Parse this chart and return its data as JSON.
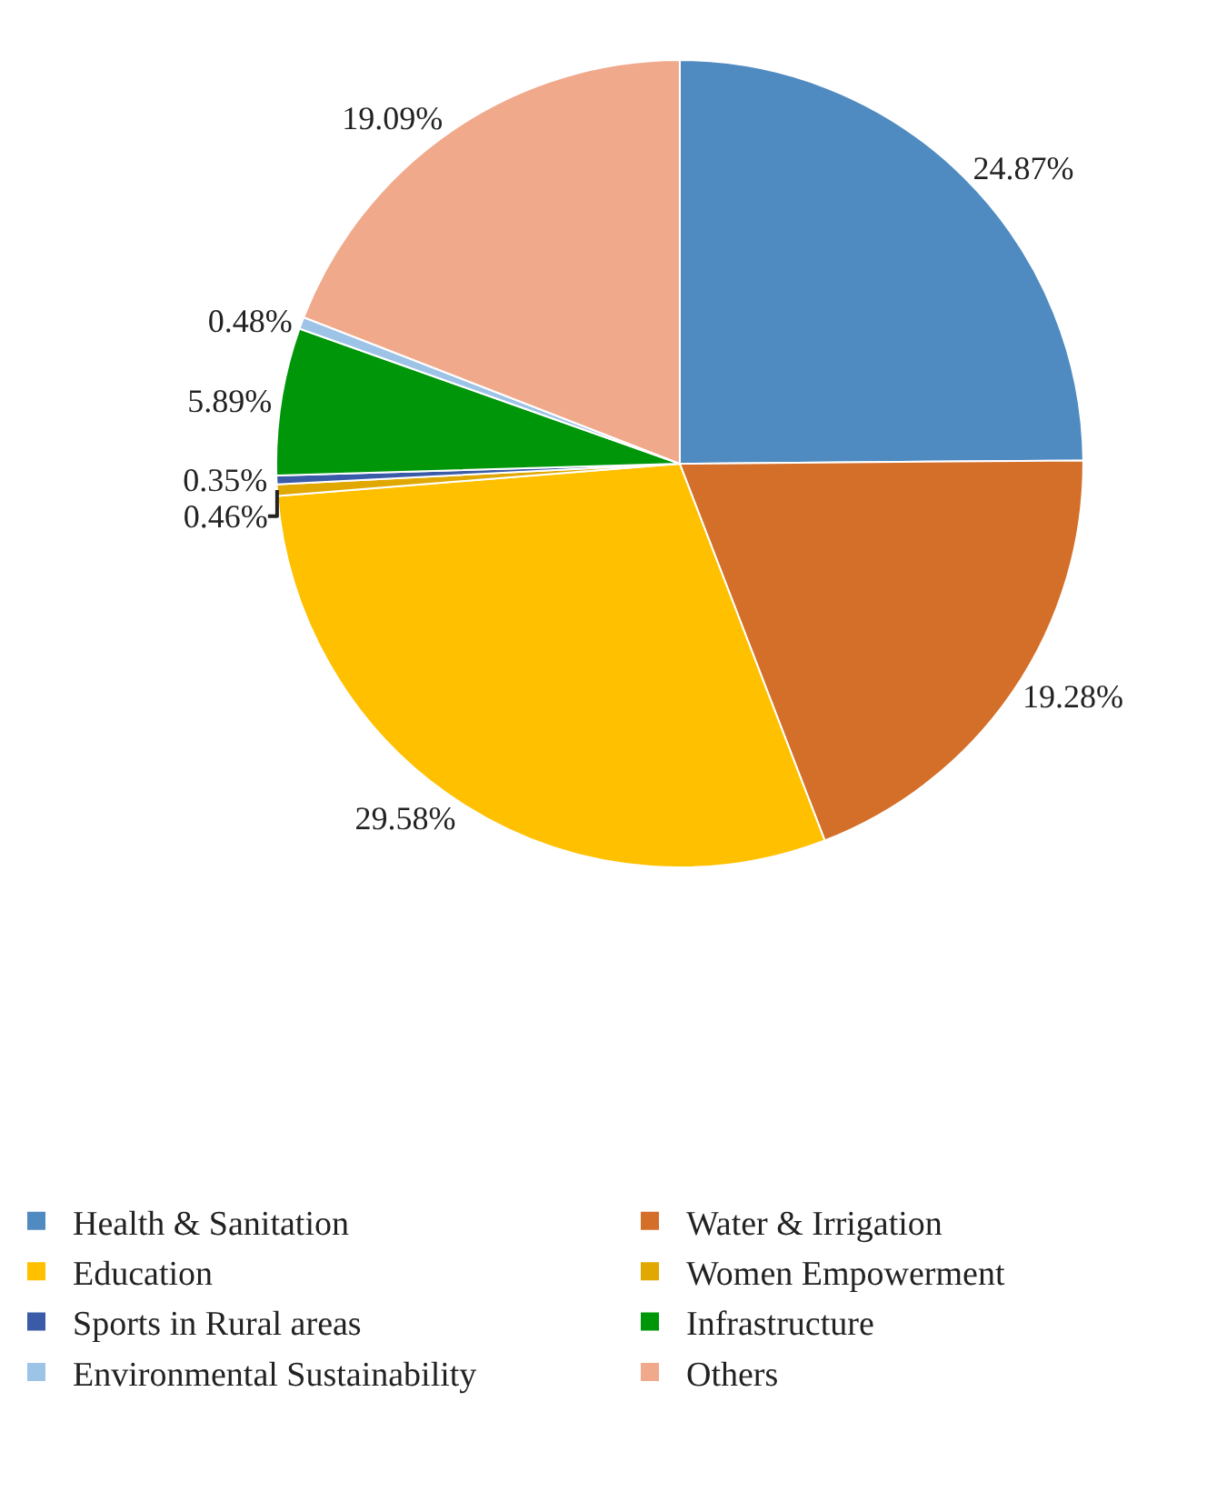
{
  "chart_data": {
    "type": "pie",
    "categories": [
      "Health & Sanitation",
      "Water & Irrigation",
      "Education",
      "Women Empowerment",
      "Sports in Rural areas",
      "Infrastructure",
      "Environmental Sustainability",
      "Others"
    ],
    "values": [
      24.87,
      19.28,
      29.58,
      0.46,
      0.35,
      5.89,
      0.48,
      19.09
    ],
    "value_labels": [
      "24.87%",
      "19.28%",
      "29.58%",
      "0.46%",
      "0.35%",
      "5.89%",
      "0.48%",
      "19.09%"
    ],
    "colors": [
      "#4f8bc0",
      "#d46f2a",
      "#ffc000",
      "#e0a800",
      "#3a5ca8",
      "#00960a",
      "#9dc3e6",
      "#f0a98a"
    ],
    "legend": "bottom"
  }
}
